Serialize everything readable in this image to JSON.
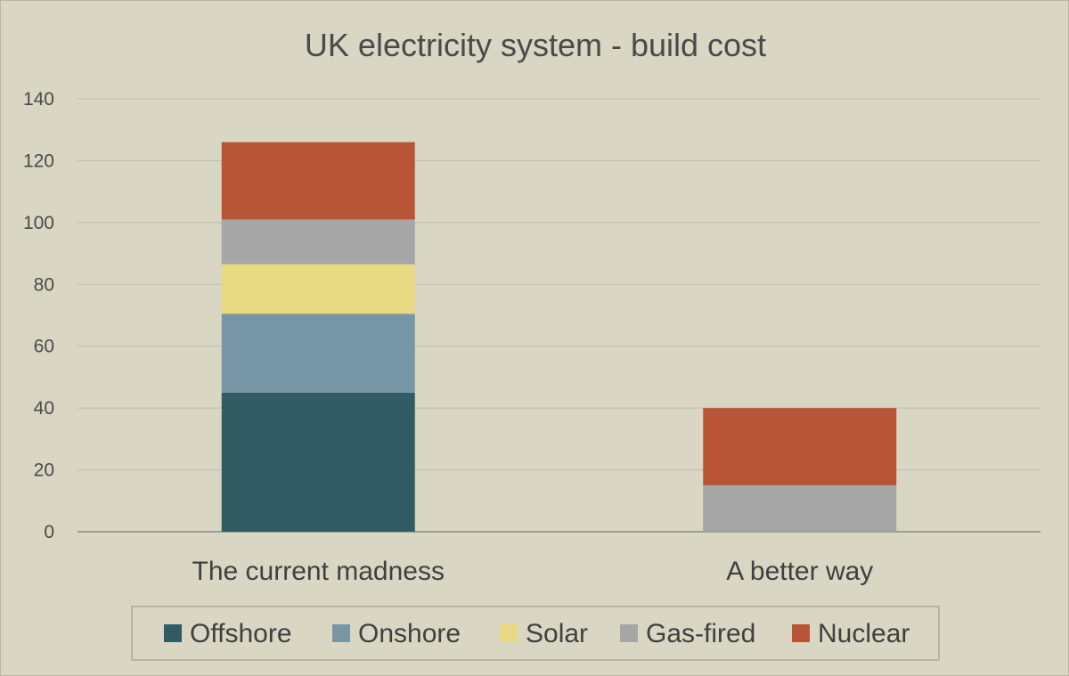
{
  "chart_data": {
    "type": "bar",
    "stacked": true,
    "title": "UK electricity system - build cost",
    "xlabel": "",
    "ylabel": "",
    "ylim": [
      0,
      140
    ],
    "yticks": [
      0,
      20,
      40,
      60,
      80,
      100,
      120,
      140
    ],
    "categories": [
      "The current madness",
      "A better way"
    ],
    "series": [
      {
        "name": "Offshore",
        "color": "#325c63",
        "values": [
          45,
          0
        ]
      },
      {
        "name": "Onshore",
        "color": "#7797a6",
        "values": [
          25.5,
          0
        ]
      },
      {
        "name": "Solar",
        "color": "#e8da82",
        "values": [
          16,
          0
        ]
      },
      {
        "name": "Gas-fired",
        "color": "#a6a6a6",
        "values": [
          14.5,
          15
        ]
      },
      {
        "name": "Nuclear",
        "color": "#b85536",
        "values": [
          25,
          25
        ]
      }
    ],
    "grid": true,
    "legend_position": "bottom"
  }
}
